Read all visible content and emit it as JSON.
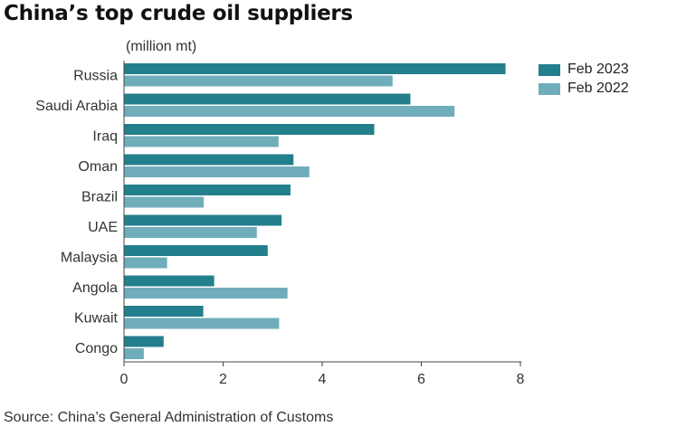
{
  "title": "China’s top crude oil suppliers",
  "unit_label": "(million mt)",
  "source": "Source: China’s General Administration of Customs",
  "colors": {
    "series_2023": "#237f8c",
    "series_2022": "#70adbb",
    "axis": "#444444",
    "tick_text": "#333333"
  },
  "chart_data": {
    "type": "bar",
    "orientation": "horizontal",
    "title": "China’s top crude oil suppliers",
    "ylabel": "(million mt)",
    "categories": [
      "Russia",
      "Saudi Arabia",
      "Iraq",
      "Oman",
      "Brazil",
      "UAE",
      "Malaysia",
      "Angola",
      "Kuwait",
      "Congo"
    ],
    "series": [
      {
        "name": "Feb 2023",
        "values": [
          7.7,
          5.78,
          5.05,
          3.42,
          3.36,
          3.18,
          2.9,
          1.82,
          1.6,
          0.8
        ]
      },
      {
        "name": "Feb 2022",
        "values": [
          5.42,
          6.67,
          3.12,
          3.74,
          1.61,
          2.68,
          0.87,
          3.3,
          3.13,
          0.4
        ]
      }
    ],
    "x_ticks": [
      0,
      2,
      4,
      6,
      8
    ],
    "xlim": [
      0,
      8
    ],
    "grid": false,
    "legend_position": "top-right"
  }
}
